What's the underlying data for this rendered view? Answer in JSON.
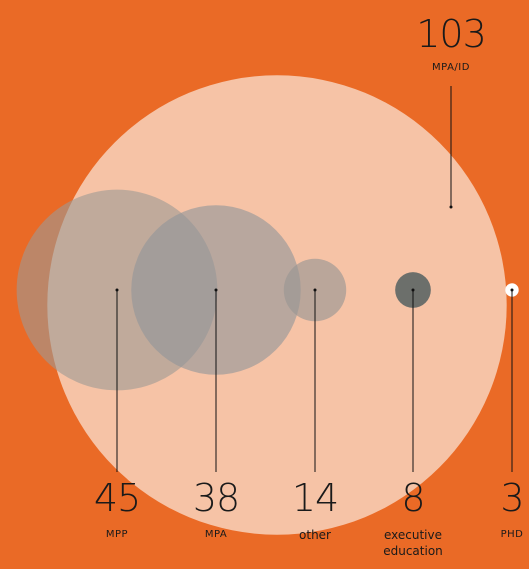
{
  "chart_data": {
    "type": "bubble",
    "categories": [
      "MPA/ID",
      "MPP",
      "MPA",
      "other",
      "executive education",
      "PHD"
    ],
    "values": [
      103,
      45,
      38,
      14,
      8,
      3
    ],
    "colors": [
      "#f6c3a6",
      "#9c9a95",
      "#8f9499",
      "#9a9794",
      "#6c6f6b",
      "#ffffff"
    ],
    "background": "#ea6a26"
  }
}
